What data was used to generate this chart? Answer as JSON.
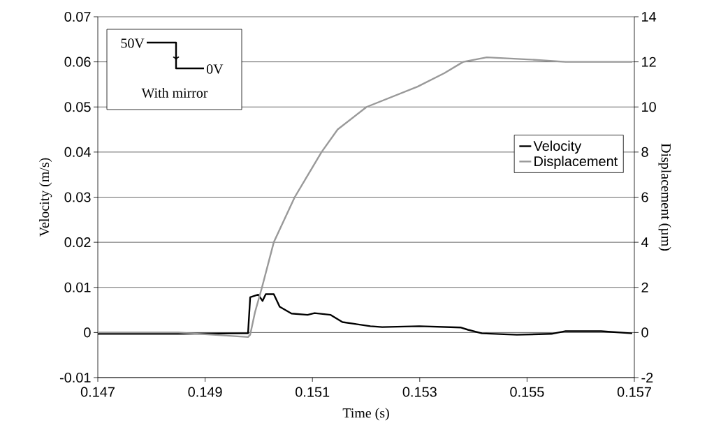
{
  "chart_data": {
    "type": "line",
    "xlabel": "Time (s)",
    "ylabel": "Velocity (m/s)",
    "y2label": "Displacement (µm)",
    "xlim": [
      0.147,
      0.157
    ],
    "xticks": [
      0.147,
      0.149,
      0.151,
      0.153,
      0.155,
      0.157
    ],
    "ylim": [
      -0.01,
      0.07
    ],
    "yticks": [
      -0.01,
      0,
      0.01,
      0.02,
      0.03,
      0.04,
      0.05,
      0.06,
      0.07
    ],
    "y2lim": [
      -2,
      14
    ],
    "y2ticks": [
      -2,
      0,
      2,
      4,
      6,
      8,
      10,
      12,
      14
    ],
    "grid": "y",
    "legend": "right",
    "annotations": [
      "50V",
      "0V",
      "With mirror"
    ],
    "series": [
      {
        "name": "Velocity",
        "color": "#000000",
        "x": [
          0.147,
          0.14843,
          0.14973,
          0.1498,
          0.14984,
          0.14999,
          0.15007,
          0.15013,
          0.15028,
          0.15039,
          0.15061,
          0.15091,
          0.15104,
          0.15134,
          0.15156,
          0.15208,
          0.1523,
          0.15299,
          0.15377,
          0.1539,
          0.15416,
          0.15481,
          0.15546,
          0.15572,
          0.15638,
          0.15696
        ],
        "values": [
          -0.0003,
          -0.0003,
          -0.0002,
          -0.0002,
          0.0078,
          0.0084,
          0.007,
          0.0085,
          0.0085,
          0.0057,
          0.0042,
          0.0039,
          0.0043,
          0.0039,
          0.0023,
          0.0014,
          0.0012,
          0.0014,
          0.0011,
          0.0006,
          -0.0002,
          -0.0005,
          -0.0003,
          0.0003,
          0.0003,
          -0.0002
        ]
      },
      {
        "name": "Displacement",
        "color": "#999999",
        "axis": "y2",
        "x": [
          0.147,
          0.1485,
          0.1498,
          0.14984,
          0.14993,
          0.15006,
          0.15028,
          0.15067,
          0.15117,
          0.15147,
          0.15201,
          0.15296,
          0.15346,
          0.15381,
          0.15425,
          0.15507,
          0.15572,
          0.15696
        ],
        "values": [
          0,
          0,
          -0.2,
          -0.1,
          0.9,
          2,
          4,
          6,
          8,
          9,
          10,
          10.9,
          11.5,
          12,
          12.2,
          12.1,
          12,
          12
        ]
      }
    ]
  }
}
